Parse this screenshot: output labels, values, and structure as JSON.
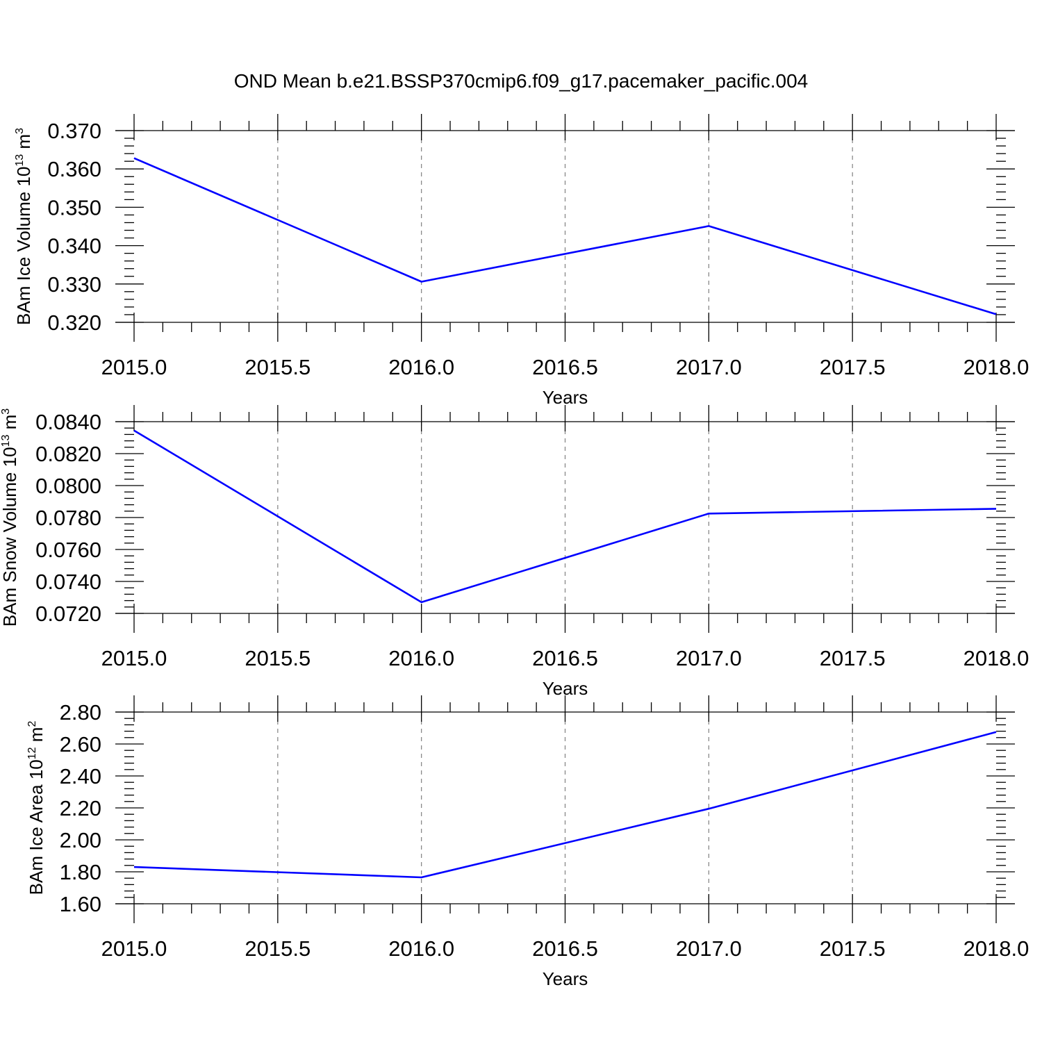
{
  "title": "OND Mean b.e21.BSSP370cmip6.f09_g17.pacemaker_pacific.004",
  "colors": {
    "series": "#0000ff",
    "grid": "#808080",
    "axes": "#000000"
  },
  "chart_data": [
    {
      "type": "line",
      "ylabel": "BAm Ice Volume 10",
      "ylabel_exp": "13",
      "ylabel_unit": "m",
      "ylabel_unit_exp": "3",
      "xlabel": "Years",
      "x": [
        2015,
        2016,
        2017,
        2018
      ],
      "y": [
        0.3628,
        0.3306,
        0.3451,
        0.3221
      ],
      "xlim": [
        2015,
        2018
      ],
      "ylim": [
        0.32,
        0.37
      ],
      "xticks": [
        2015,
        2015.5,
        2016,
        2016.5,
        2017,
        2017.5,
        2018
      ],
      "xtick_labels": [
        "2015.0",
        "2015.5",
        "2016.0",
        "2016.5",
        "2017.0",
        "2017.5",
        "2018.0"
      ],
      "yticks": [
        0.32,
        0.33,
        0.34,
        0.35,
        0.36,
        0.37
      ],
      "ytick_labels": [
        "0.320",
        "0.330",
        "0.340",
        "0.350",
        "0.360",
        "0.370"
      ],
      "yminor_step": 0.002,
      "grid": "vertical dashed at major x ticks"
    },
    {
      "type": "line",
      "ylabel": "BAm Snow Volume 10",
      "ylabel_exp": "13",
      "ylabel_unit": "m",
      "ylabel_unit_exp": "3",
      "xlabel": "Years",
      "x": [
        2015,
        2016,
        2017,
        2018
      ],
      "y": [
        0.08345,
        0.0727,
        0.07825,
        0.07855
      ],
      "xlim": [
        2015,
        2018
      ],
      "ylim": [
        0.072,
        0.084
      ],
      "xticks": [
        2015,
        2015.5,
        2016,
        2016.5,
        2017,
        2017.5,
        2018
      ],
      "xtick_labels": [
        "2015.0",
        "2015.5",
        "2016.0",
        "2016.5",
        "2017.0",
        "2017.5",
        "2018.0"
      ],
      "yticks": [
        0.072,
        0.074,
        0.076,
        0.078,
        0.08,
        0.082,
        0.084
      ],
      "ytick_labels": [
        "0.0720",
        "0.0740",
        "0.0760",
        "0.0780",
        "0.0800",
        "0.0820",
        "0.0840"
      ],
      "yminor_step": 0.0004,
      "grid": "vertical dashed at major x ticks"
    },
    {
      "type": "line",
      "ylabel": "BAm Ice Area 10",
      "ylabel_exp": "12",
      "ylabel_unit": "m",
      "ylabel_unit_exp": "2",
      "xlabel": "Years",
      "x": [
        2015,
        2016,
        2017,
        2018
      ],
      "y": [
        1.83,
        1.765,
        2.195,
        2.675
      ],
      "xlim": [
        2015,
        2018
      ],
      "ylim": [
        1.6,
        2.8
      ],
      "xticks": [
        2015,
        2015.5,
        2016,
        2016.5,
        2017,
        2017.5,
        2018
      ],
      "xtick_labels": [
        "2015.0",
        "2015.5",
        "2016.0",
        "2016.5",
        "2017.0",
        "2017.5",
        "2018.0"
      ],
      "yticks": [
        1.6,
        1.8,
        2.0,
        2.2,
        2.4,
        2.6,
        2.8
      ],
      "ytick_labels": [
        "1.60",
        "1.80",
        "2.00",
        "2.20",
        "2.40",
        "2.60",
        "2.80"
      ],
      "yminor_step": 0.04,
      "grid": "vertical dashed at major x ticks"
    }
  ]
}
